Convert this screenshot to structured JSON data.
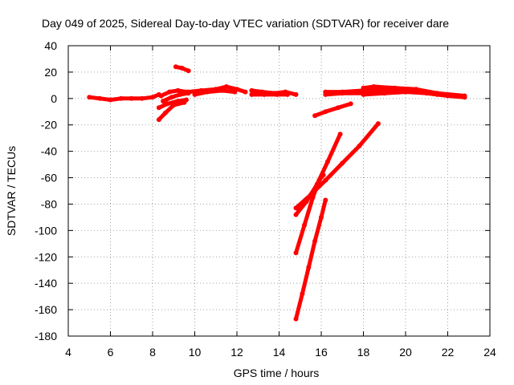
{
  "chart_data": {
    "type": "scatter",
    "title": "Day 049 of 2025, Sidereal Day-to-day VTEC variation (SDTVAR) for receiver dare",
    "xlabel": "GPS time / hours",
    "ylabel": "SDTVAR / TECUs",
    "xlim": [
      4,
      24
    ],
    "ylim": [
      -180,
      40
    ],
    "xticks": [
      4,
      6,
      8,
      10,
      12,
      14,
      16,
      18,
      20,
      22,
      24
    ],
    "yticks": [
      40,
      20,
      0,
      -20,
      -40,
      -60,
      -80,
      -100,
      -120,
      -140,
      -160,
      -180
    ],
    "grid": true,
    "legend": "none",
    "color": "#ff0000",
    "series": [
      {
        "x": [
          5.0,
          5.5,
          6.0,
          6.5,
          7.0,
          7.5,
          8.0,
          8.3
        ],
        "y": [
          1,
          0,
          -1,
          0,
          0,
          0,
          1,
          3
        ]
      },
      {
        "x": [
          8.3,
          8.6,
          9.0,
          9.5
        ],
        "y": [
          -16,
          -11,
          -5,
          -3
        ]
      },
      {
        "x": [
          8.3,
          8.7,
          9.2,
          9.6
        ],
        "y": [
          -7,
          -4,
          -2,
          -1
        ]
      },
      {
        "x": [
          8.5,
          8.9,
          9.3,
          9.7
        ],
        "y": [
          -2,
          1,
          3,
          4
        ]
      },
      {
        "x": [
          8.4,
          8.8,
          9.2,
          9.6
        ],
        "y": [
          2,
          5,
          6,
          5
        ]
      },
      {
        "x": [
          9.1,
          9.4,
          9.7
        ],
        "y": [
          24,
          23,
          21
        ]
      },
      {
        "x": [
          9.7,
          10.3,
          11.0,
          11.5,
          12.0,
          12.4
        ],
        "y": [
          5,
          6,
          7,
          9,
          7,
          5
        ]
      },
      {
        "x": [
          10.0,
          10.6,
          11.3,
          11.9
        ],
        "y": [
          3,
          5,
          6,
          5
        ]
      },
      {
        "x": [
          12.7,
          13.2,
          13.8,
          14.3,
          14.8
        ],
        "y": [
          6,
          5,
          4,
          5,
          3
        ]
      },
      {
        "x": [
          12.7,
          13.3,
          13.9,
          14.4
        ],
        "y": [
          3,
          3,
          3,
          3
        ]
      },
      {
        "x": [
          15.7,
          16.2,
          16.8,
          17.4
        ],
        "y": [
          -13,
          -10,
          -7,
          -4
        ]
      },
      {
        "x": [
          16.2,
          17.0,
          18.0,
          18.5
        ],
        "y": [
          3,
          4,
          4,
          4
        ]
      },
      {
        "x": [
          16.2,
          17.0,
          18.0,
          18.5
        ],
        "y": [
          5,
          5,
          6,
          6
        ]
      },
      {
        "x": [
          18.0,
          18.5,
          19.5,
          20.5,
          21.5,
          22.8
        ],
        "y": [
          8,
          9,
          8,
          7,
          4,
          2
        ]
      },
      {
        "x": [
          18.0,
          19.0,
          20.0,
          21.0,
          22.0,
          22.8
        ],
        "y": [
          3,
          4,
          5,
          4,
          2,
          1
        ]
      },
      {
        "x": [
          18.5,
          19.5,
          20.5,
          21.5,
          22.5
        ],
        "y": [
          6,
          6,
          5,
          3,
          2
        ]
      },
      {
        "x": [
          14.8,
          15.3,
          15.8,
          16.3,
          16.9
        ],
        "y": [
          -88,
          -78,
          -65,
          -48,
          -27
        ]
      },
      {
        "x": [
          14.8,
          15.5,
          16.2,
          17.0,
          17.8,
          18.7
        ],
        "y": [
          -83,
          -73,
          -62,
          -49,
          -36,
          -19
        ]
      },
      {
        "x": [
          14.8,
          15.2,
          15.6,
          15.9,
          16.1
        ],
        "y": [
          -117,
          -96,
          -75,
          -62,
          -58
        ]
      },
      {
        "x": [
          14.8,
          15.1,
          15.4,
          15.7,
          16.0,
          16.2
        ],
        "y": [
          -167,
          -148,
          -128,
          -108,
          -90,
          -77
        ]
      }
    ]
  }
}
